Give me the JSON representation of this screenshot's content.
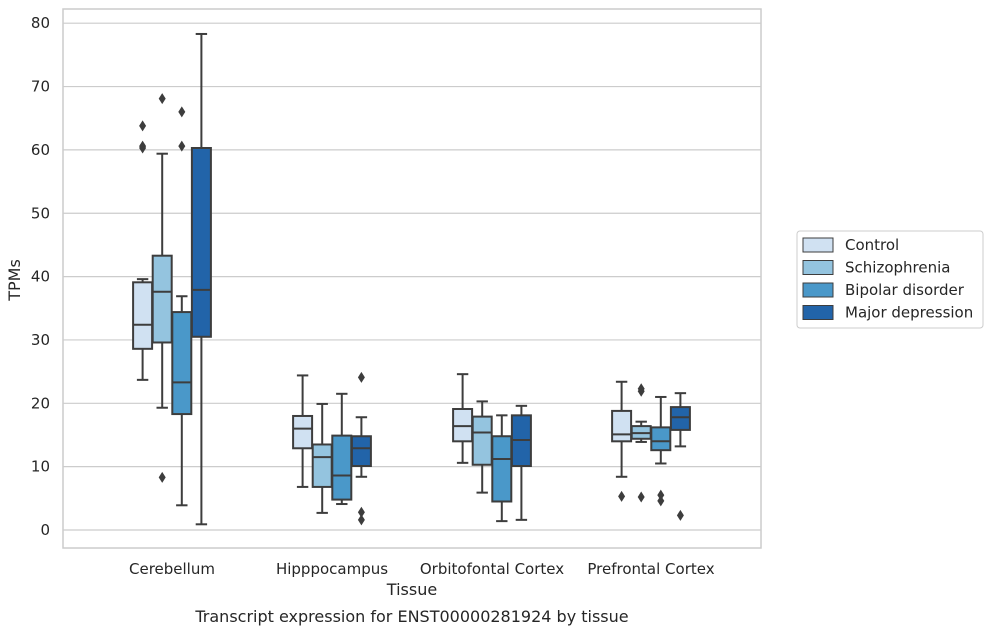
{
  "chart_data": {
    "type": "box",
    "caption": "Transcript expression for ENST00000281924 by tissue",
    "xlabel": "Tissue",
    "ylabel": "TPMs",
    "ylim": [
      -2.5,
      82
    ],
    "yticks": [
      0,
      10,
      20,
      30,
      40,
      50,
      60,
      70,
      80
    ],
    "grid": "horizontal",
    "legend_position": "right",
    "categories": [
      "Cerebellum",
      "Hipppocampus",
      "Orbitofontal Cortex",
      "Prefrontal Cortex"
    ],
    "series": [
      {
        "name": "Control",
        "color": "#d0e1f2",
        "boxes": [
          {
            "whisker_low": 23.7,
            "q1": 28.6,
            "median": 32.4,
            "q3": 39.1,
            "whisker_high": 39.6,
            "outliers": [
              60.3,
              60.6,
              63.8
            ]
          },
          {
            "whisker_low": 6.8,
            "q1": 12.9,
            "median": 16.0,
            "q3": 18.0,
            "whisker_high": 24.4,
            "outliers": []
          },
          {
            "whisker_low": 10.6,
            "q1": 14.0,
            "median": 16.4,
            "q3": 19.1,
            "whisker_high": 24.6,
            "outliers": []
          },
          {
            "whisker_low": 8.4,
            "q1": 14.0,
            "median": 15.1,
            "q3": 18.8,
            "whisker_high": 23.4,
            "outliers": [
              5.3
            ]
          }
        ]
      },
      {
        "name": "Schizophrenia",
        "color": "#94c4df",
        "boxes": [
          {
            "whisker_low": 19.3,
            "q1": 29.6,
            "median": 37.6,
            "q3": 43.3,
            "whisker_high": 59.4,
            "outliers": [
              8.3,
              68.1
            ]
          },
          {
            "whisker_low": 2.7,
            "q1": 6.8,
            "median": 11.5,
            "q3": 13.5,
            "whisker_high": 19.9,
            "outliers": []
          },
          {
            "whisker_low": 5.9,
            "q1": 10.3,
            "median": 15.4,
            "q3": 17.9,
            "whisker_high": 20.3,
            "outliers": []
          },
          {
            "whisker_low": 13.9,
            "q1": 14.4,
            "median": 15.3,
            "q3": 16.4,
            "whisker_high": 17.1,
            "outliers": [
              5.2,
              21.9,
              22.3
            ]
          }
        ]
      },
      {
        "name": "Bipolar disorder",
        "color": "#4a98c9",
        "boxes": [
          {
            "whisker_low": 3.9,
            "q1": 18.3,
            "median": 23.3,
            "q3": 34.4,
            "whisker_high": 36.9,
            "outliers": [
              60.6,
              66.0
            ]
          },
          {
            "whisker_low": 4.1,
            "q1": 4.8,
            "median": 8.6,
            "q3": 14.9,
            "whisker_high": 21.5,
            "outliers": []
          },
          {
            "whisker_low": 1.4,
            "q1": 4.5,
            "median": 11.2,
            "q3": 14.8,
            "whisker_high": 18.1,
            "outliers": []
          },
          {
            "whisker_low": 10.5,
            "q1": 12.6,
            "median": 14.0,
            "q3": 16.2,
            "whisker_high": 21.0,
            "outliers": [
              4.6,
              5.5
            ]
          }
        ]
      },
      {
        "name": "Major depression",
        "color": "#2264a9",
        "boxes": [
          {
            "whisker_low": 0.9,
            "q1": 30.5,
            "median": 37.9,
            "q3": 60.3,
            "whisker_high": 78.3,
            "outliers": []
          },
          {
            "whisker_low": 8.4,
            "q1": 10.1,
            "median": 12.9,
            "q3": 14.8,
            "whisker_high": 17.8,
            "outliers": [
              1.6,
              2.8,
              24.1
            ]
          },
          {
            "whisker_low": 1.6,
            "q1": 10.1,
            "median": 14.2,
            "q3": 18.1,
            "whisker_high": 19.6,
            "outliers": []
          },
          {
            "whisker_low": 13.2,
            "q1": 15.8,
            "median": 17.8,
            "q3": 19.4,
            "whisker_high": 21.6,
            "outliers": [
              2.3
            ]
          }
        ]
      }
    ]
  }
}
